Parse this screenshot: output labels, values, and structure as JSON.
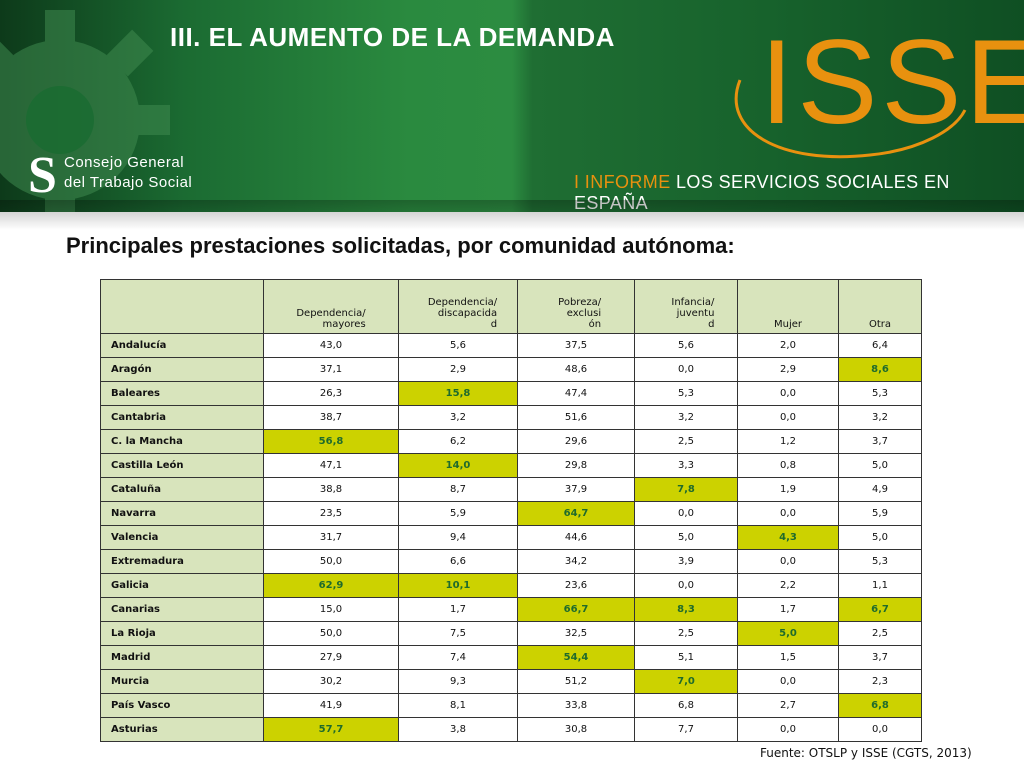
{
  "banner": {
    "title": "III. EL AUMENTO DE LA DEMANDA",
    "org_logo_line1": "Consejo General",
    "org_logo_line2": "del Trabajo Social",
    "isse_logo": "ISSE",
    "isse_subtitle_accent": "I INFORME",
    "isse_subtitle_rest": "LOS SERVICIOS SOCIALES EN ESPAÑA",
    "colors": {
      "banner_green": "#1b6b32",
      "isse_orange": "#e8910f",
      "header_cell": "#d8e4bc",
      "highlight_cell": "#ccd200",
      "highlight_text": "#1f6b2c"
    }
  },
  "heading": "Principales prestaciones solicitadas, por comunidad autónoma:",
  "table": {
    "columns": [
      "",
      "Dependencia/\n      mayores",
      "Dependencia/\n      discapacida\nd",
      "Pobreza/\n     exclusi\nón",
      "Infancia/\n      juventu\nd",
      "Mujer",
      "Otra"
    ],
    "rows": [
      {
        "region": "Andalucía",
        "values": [
          "43,0",
          "5,6",
          "37,5",
          "5,6",
          "2,0",
          "6,4"
        ],
        "highlight": []
      },
      {
        "region": "Aragón",
        "values": [
          "37,1",
          "2,9",
          "48,6",
          "0,0",
          "2,9",
          "8,6"
        ],
        "highlight": [
          5
        ]
      },
      {
        "region": "Baleares",
        "values": [
          "26,3",
          "15,8",
          "47,4",
          "5,3",
          "0,0",
          "5,3"
        ],
        "highlight": [
          1
        ]
      },
      {
        "region": "Cantabria",
        "values": [
          "38,7",
          "3,2",
          "51,6",
          "3,2",
          "0,0",
          "3,2"
        ],
        "highlight": []
      },
      {
        "region": "C. la Mancha",
        "values": [
          "56,8",
          "6,2",
          "29,6",
          "2,5",
          "1,2",
          "3,7"
        ],
        "highlight": [
          0
        ]
      },
      {
        "region": "Castilla León",
        "values": [
          "47,1",
          "14,0",
          "29,8",
          "3,3",
          "0,8",
          "5,0"
        ],
        "highlight": [
          1
        ]
      },
      {
        "region": "Cataluña",
        "values": [
          "38,8",
          "8,7",
          "37,9",
          "7,8",
          "1,9",
          "4,9"
        ],
        "highlight": [
          3
        ]
      },
      {
        "region": "Navarra",
        "values": [
          "23,5",
          "5,9",
          "64,7",
          "0,0",
          "0,0",
          "5,9"
        ],
        "highlight": [
          2
        ]
      },
      {
        "region": "Valencia",
        "values": [
          "31,7",
          "9,4",
          "44,6",
          "5,0",
          "4,3",
          "5,0"
        ],
        "highlight": [
          4
        ]
      },
      {
        "region": "Extremadura",
        "values": [
          "50,0",
          "6,6",
          "34,2",
          "3,9",
          "0,0",
          "5,3"
        ],
        "highlight": []
      },
      {
        "region": "Galicia",
        "values": [
          "62,9",
          "10,1",
          "23,6",
          "0,0",
          "2,2",
          "1,1"
        ],
        "highlight": [
          0,
          1
        ]
      },
      {
        "region": "Canarias",
        "values": [
          "15,0",
          "1,7",
          "66,7",
          "8,3",
          "1,7",
          "6,7"
        ],
        "highlight": [
          2,
          3,
          5
        ]
      },
      {
        "region": "La Rioja",
        "values": [
          "50,0",
          "7,5",
          "32,5",
          "2,5",
          "5,0",
          "2,5"
        ],
        "highlight": [
          4
        ]
      },
      {
        "region": "Madrid",
        "values": [
          "27,9",
          "7,4",
          "54,4",
          "5,1",
          "1,5",
          "3,7"
        ],
        "highlight": [
          2
        ]
      },
      {
        "region": "Murcia",
        "values": [
          "30,2",
          "9,3",
          "51,2",
          "7,0",
          "0,0",
          "2,3"
        ],
        "highlight": [
          3
        ]
      },
      {
        "region": "País Vasco",
        "values": [
          "41,9",
          "8,1",
          "33,8",
          "6,8",
          "2,7",
          "6,8"
        ],
        "highlight": [
          5
        ]
      },
      {
        "region": "Asturias",
        "values": [
          "57,7",
          "3,8",
          "30,8",
          "7,7",
          "0,0",
          "0,0"
        ],
        "highlight": [
          0
        ]
      }
    ]
  },
  "source": "Fuente: OTSLP y ISSE (CGTS, 2013)"
}
